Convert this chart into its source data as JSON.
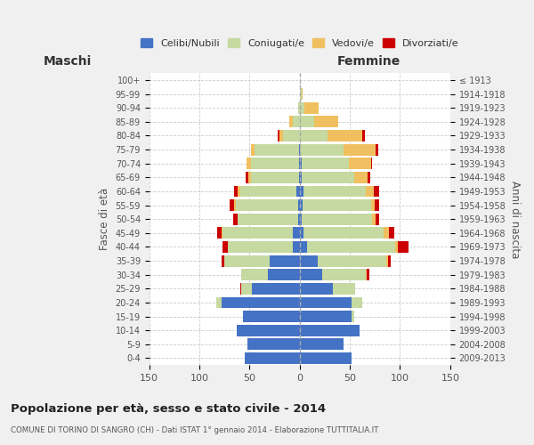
{
  "age_groups": [
    "0-4",
    "5-9",
    "10-14",
    "15-19",
    "20-24",
    "25-29",
    "30-34",
    "35-39",
    "40-44",
    "45-49",
    "50-54",
    "55-59",
    "60-64",
    "65-69",
    "70-74",
    "75-79",
    "80-84",
    "85-89",
    "90-94",
    "95-99",
    "100+"
  ],
  "birth_years": [
    "2009-2013",
    "2004-2008",
    "1999-2003",
    "1994-1998",
    "1989-1993",
    "1984-1988",
    "1979-1983",
    "1974-1978",
    "1969-1973",
    "1964-1968",
    "1959-1963",
    "1954-1958",
    "1949-1953",
    "1944-1948",
    "1939-1943",
    "1934-1938",
    "1929-1933",
    "1924-1928",
    "1919-1923",
    "1914-1918",
    "≤ 1913"
  ],
  "males": {
    "celibi": [
      55,
      52,
      63,
      57,
      78,
      48,
      32,
      30,
      7,
      7,
      2,
      2,
      3,
      1,
      1,
      1,
      0,
      0,
      0,
      0,
      0
    ],
    "coniugati": [
      0,
      0,
      0,
      0,
      5,
      10,
      26,
      45,
      65,
      70,
      60,
      62,
      56,
      48,
      48,
      44,
      17,
      7,
      2,
      0,
      0
    ],
    "vedovi": [
      0,
      0,
      0,
      0,
      0,
      0,
      0,
      0,
      0,
      1,
      0,
      1,
      3,
      2,
      4,
      4,
      3,
      3,
      0,
      0,
      0
    ],
    "divorziati": [
      0,
      0,
      0,
      0,
      0,
      1,
      0,
      3,
      5,
      4,
      4,
      5,
      3,
      3,
      0,
      0,
      2,
      0,
      0,
      0,
      0
    ]
  },
  "females": {
    "nubili": [
      52,
      44,
      60,
      52,
      52,
      33,
      22,
      18,
      7,
      4,
      2,
      3,
      4,
      2,
      2,
      0,
      0,
      0,
      0,
      0,
      0
    ],
    "coniugate": [
      0,
      0,
      0,
      2,
      10,
      22,
      44,
      68,
      88,
      80,
      70,
      68,
      62,
      52,
      47,
      44,
      28,
      14,
      5,
      2,
      0
    ],
    "vedove": [
      0,
      0,
      0,
      0,
      0,
      0,
      1,
      2,
      3,
      5,
      4,
      4,
      8,
      14,
      22,
      32,
      34,
      24,
      14,
      1,
      0
    ],
    "divorziate": [
      0,
      0,
      0,
      0,
      0,
      0,
      2,
      3,
      10,
      5,
      3,
      4,
      5,
      2,
      1,
      2,
      3,
      0,
      0,
      0,
      0
    ]
  },
  "colors": {
    "celibi": "#4472c4",
    "coniugati": "#c5d9a0",
    "vedovi": "#f0c060",
    "divorziati": "#cc0000"
  },
  "xlim": 150,
  "title": "Popolazione per età, sesso e stato civile - 2014",
  "subtitle": "COMUNE DI TORINO DI SANGRO (CH) - Dati ISTAT 1° gennaio 2014 - Elaborazione TUTTITALIA.IT",
  "xlabel_left": "Maschi",
  "xlabel_right": "Femmine",
  "ylabel_left": "Fasce di età",
  "ylabel_right": "Anni di nascita",
  "bg_color": "#f0f0f0",
  "plot_bg_color": "#ffffff"
}
